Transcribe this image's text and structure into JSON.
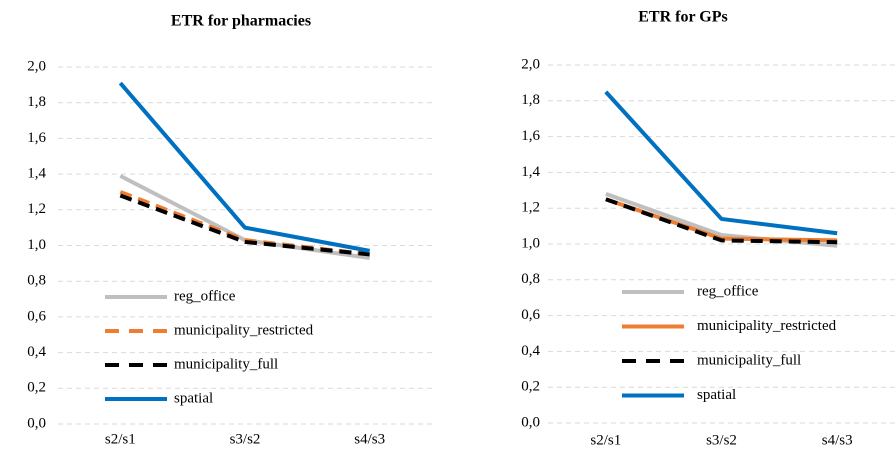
{
  "chart_data": [
    {
      "type": "line",
      "title": "ETR for pharmacies",
      "categories": [
        "s2/s1",
        "s3/s2",
        "s4/s3"
      ],
      "ylim": [
        0,
        2.0
      ],
      "yticks": [
        {
          "value": 0,
          "label": "0,0"
        },
        {
          "value": 0.2,
          "label": "0,2"
        },
        {
          "value": 0.4,
          "label": "0,4"
        },
        {
          "value": 0.6,
          "label": "0,6"
        },
        {
          "value": 0.8,
          "label": "0,8"
        },
        {
          "value": 1.0,
          "label": "1,0"
        },
        {
          "value": 1.2,
          "label": "1,2"
        },
        {
          "value": 1.4,
          "label": "1,4"
        },
        {
          "value": 1.6,
          "label": "1,6"
        },
        {
          "value": 1.8,
          "label": "1,8"
        },
        {
          "value": 2.0,
          "label": "2,0"
        }
      ],
      "grid": true,
      "legend": "lower-left",
      "series": [
        {
          "name": "reg_office",
          "color": "#bfbfbf",
          "dash": false,
          "values": [
            1.39,
            1.03,
            0.93
          ]
        },
        {
          "name": "municipality_restricted",
          "color": "#ed7d31",
          "dash": true,
          "values": [
            1.3,
            1.03,
            0.95
          ]
        },
        {
          "name": "municipality_full",
          "color": "#000000",
          "dash": true,
          "values": [
            1.28,
            1.02,
            0.95
          ]
        },
        {
          "name": "spatial",
          "color": "#0070c0",
          "dash": false,
          "values": [
            1.91,
            1.1,
            0.97
          ]
        }
      ]
    },
    {
      "type": "line",
      "title": "ETR for GPs",
      "categories": [
        "s2/s1",
        "s3/s2",
        "s4/s3"
      ],
      "ylim": [
        0,
        2.0
      ],
      "yticks": [
        {
          "value": 0,
          "label": "0,0"
        },
        {
          "value": 0.2,
          "label": "0,2"
        },
        {
          "value": 0.4,
          "label": "0,4"
        },
        {
          "value": 0.6,
          "label": "0,6"
        },
        {
          "value": 0.8,
          "label": "0,8"
        },
        {
          "value": 1.0,
          "label": "1,0"
        },
        {
          "value": 1.2,
          "label": "1,2"
        },
        {
          "value": 1.4,
          "label": "1,4"
        },
        {
          "value": 1.6,
          "label": "1,6"
        },
        {
          "value": 1.8,
          "label": "1,8"
        },
        {
          "value": 2.0,
          "label": "2,0"
        }
      ],
      "grid": true,
      "legend": "lower-left",
      "series": [
        {
          "name": "reg_office",
          "color": "#bfbfbf",
          "dash": false,
          "values": [
            1.28,
            1.05,
            0.99
          ]
        },
        {
          "name": "municipality_restricted",
          "color": "#ed7d31",
          "dash": false,
          "values": [
            1.25,
            1.03,
            1.02
          ]
        },
        {
          "name": "municipality_full",
          "color": "#000000",
          "dash": true,
          "values": [
            1.25,
            1.02,
            1.01
          ]
        },
        {
          "name": "spatial",
          "color": "#0070c0",
          "dash": false,
          "values": [
            1.85,
            1.14,
            1.06
          ]
        }
      ]
    }
  ]
}
